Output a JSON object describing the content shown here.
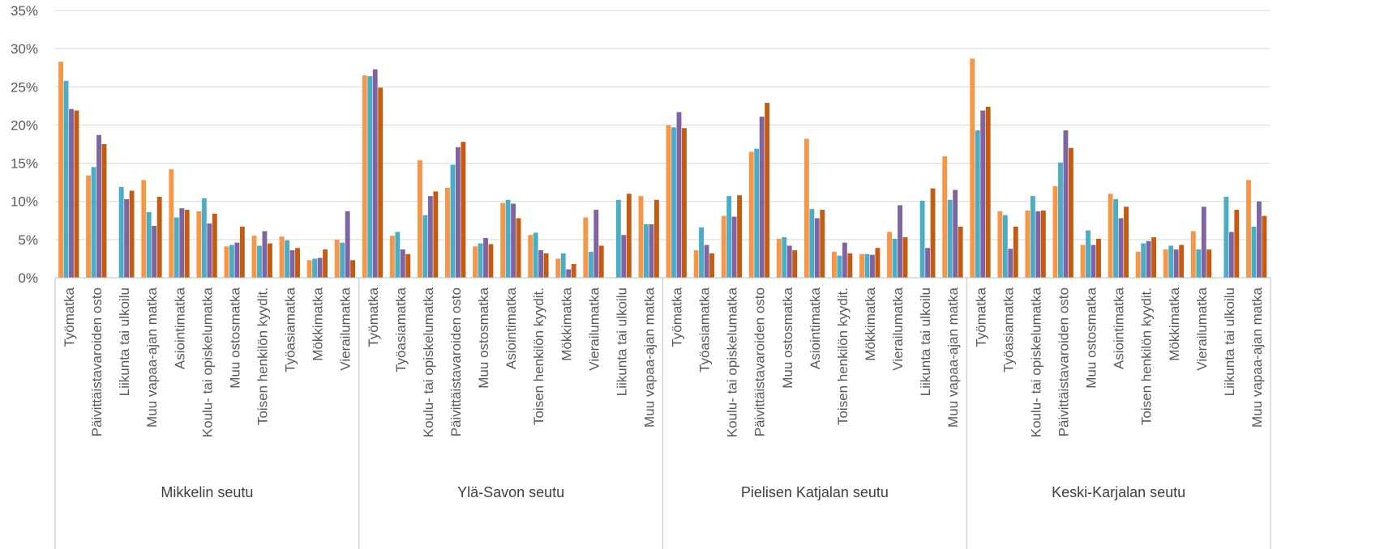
{
  "chart_data": {
    "type": "bar",
    "title": "",
    "xlabel": "",
    "ylabel": "",
    "ylim": [
      0,
      35
    ],
    "yticks": [
      "0%",
      "5%",
      "10%",
      "15%",
      "20%",
      "25%",
      "30%",
      "35%"
    ],
    "grid": true,
    "colors": [
      "#F79646",
      "#4BACC6",
      "#8064A2",
      "#C55A11"
    ],
    "groups": [
      {
        "name": "Mikkelin seutu",
        "categories": [
          {
            "label": "Työmatka",
            "values": [
              28.3,
              25.8,
              22.1,
              21.9
            ]
          },
          {
            "label": "Päivittäistavaroiden osto",
            "values": [
              13.4,
              14.5,
              18.7,
              17.5
            ]
          },
          {
            "label": "Liikunta tai ulkoilu",
            "values": [
              0,
              11.9,
              10.3,
              11.4
            ]
          },
          {
            "label": "Muu vapaa-ajan matka",
            "values": [
              12.8,
              8.6,
              6.8,
              10.6
            ]
          },
          {
            "label": "Asiointimatka",
            "values": [
              14.2,
              7.9,
              9.1,
              8.9
            ]
          },
          {
            "label": "Koulu- tai opiskelumatka",
            "values": [
              8.7,
              10.4,
              7.1,
              8.4
            ]
          },
          {
            "label": "Muu ostosmatka",
            "values": [
              4.1,
              4.3,
              4.6,
              6.7
            ]
          },
          {
            "label": "Toisen henkilön kyydit.",
            "values": [
              5.5,
              4.2,
              6.1,
              4.5
            ]
          },
          {
            "label": "Työasiamatka",
            "values": [
              5.4,
              4.9,
              3.6,
              3.9
            ]
          },
          {
            "label": "Mökkimatka",
            "values": [
              2.3,
              2.5,
              2.6,
              3.7
            ]
          },
          {
            "label": "Vierailumatka",
            "values": [
              5.0,
              4.6,
              8.7,
              2.3
            ]
          }
        ]
      },
      {
        "name": "Ylä-Savon seutu",
        "categories": [
          {
            "label": "Työmatka",
            "values": [
              26.5,
              26.4,
              27.3,
              24.9
            ]
          },
          {
            "label": "Työasiamatka",
            "values": [
              5.5,
              6.0,
              3.7,
              3.1
            ]
          },
          {
            "label": "Koulu- tai opiskelumatka",
            "values": [
              15.4,
              8.2,
              10.7,
              11.3
            ]
          },
          {
            "label": "Päivittäistavaroiden osto",
            "values": [
              11.8,
              14.8,
              17.1,
              17.8
            ]
          },
          {
            "label": "Muu ostosmatka",
            "values": [
              4.1,
              4.5,
              5.2,
              4.4
            ]
          },
          {
            "label": "Asiointimatka",
            "values": [
              9.8,
              10.2,
              9.7,
              7.8
            ]
          },
          {
            "label": "Toisen henkilön kyydit.",
            "values": [
              5.6,
              5.9,
              3.6,
              3.2
            ]
          },
          {
            "label": "Mökkimatka",
            "values": [
              2.5,
              3.2,
              1.1,
              1.8
            ]
          },
          {
            "label": "Vierailumatka",
            "values": [
              7.9,
              3.4,
              8.9,
              4.2
            ]
          },
          {
            "label": "Liikunta tai ulkoilu",
            "values": [
              0,
              10.2,
              5.6,
              11.0
            ]
          },
          {
            "label": "Muu vapaa-ajan matka",
            "values": [
              10.7,
              7.0,
              7.0,
              10.2
            ]
          }
        ]
      },
      {
        "name": "Pielisen Katjalan seutu",
        "categories": [
          {
            "label": "Työmatka",
            "values": [
              20.0,
              19.7,
              21.7,
              19.6
            ]
          },
          {
            "label": "Työasiamatka",
            "values": [
              3.6,
              6.6,
              4.3,
              3.2
            ]
          },
          {
            "label": "Koulu- tai opiskelumatka",
            "values": [
              8.1,
              10.7,
              8.0,
              10.8
            ]
          },
          {
            "label": "Päivittäistavaroiden osto",
            "values": [
              16.5,
              16.9,
              21.1,
              22.9
            ]
          },
          {
            "label": "Muu ostosmatka",
            "values": [
              5.1,
              5.3,
              4.2,
              3.6
            ]
          },
          {
            "label": "Asiointimatka",
            "values": [
              18.2,
              9.0,
              7.8,
              8.9
            ]
          },
          {
            "label": "Toisen henkilön kyydit.",
            "values": [
              3.4,
              2.9,
              4.6,
              3.2
            ]
          },
          {
            "label": "Mökkimatka",
            "values": [
              3.1,
              3.1,
              3.0,
              3.9
            ]
          },
          {
            "label": "Vierailumatka",
            "values": [
              6.0,
              5.1,
              9.5,
              5.3
            ]
          },
          {
            "label": "Liikunta tai ulkoilu",
            "values": [
              0,
              10.1,
              3.9,
              11.7
            ]
          },
          {
            "label": "Muu vapaa-ajan matka",
            "values": [
              15.9,
              10.2,
              11.5,
              6.7
            ]
          }
        ]
      },
      {
        "name": "Keski-Karjalan seutu",
        "categories": [
          {
            "label": "Työmatka",
            "values": [
              28.7,
              19.3,
              21.9,
              22.4
            ]
          },
          {
            "label": "Työasiamatka",
            "values": [
              8.7,
              8.2,
              3.8,
              6.7
            ]
          },
          {
            "label": "Koulu- tai opiskelumatka",
            "values": [
              8.8,
              10.7,
              8.7,
              8.8
            ]
          },
          {
            "label": "Päivittäistavaroiden osto",
            "values": [
              12.0,
              15.1,
              19.3,
              17.0
            ]
          },
          {
            "label": "Muu ostosmatka",
            "values": [
              4.3,
              6.2,
              4.3,
              5.1
            ]
          },
          {
            "label": "Asiointimatka",
            "values": [
              11.0,
              10.3,
              7.8,
              9.3
            ]
          },
          {
            "label": "Toisen henkilön kyydit.",
            "values": [
              3.4,
              4.5,
              4.8,
              5.3
            ]
          },
          {
            "label": "Mökkimatka",
            "values": [
              3.7,
              4.2,
              3.7,
              4.3
            ]
          },
          {
            "label": "Vierailumatka",
            "values": [
              6.1,
              3.7,
              9.3,
              3.7
            ]
          },
          {
            "label": "Liikunta tai ulkoilu",
            "values": [
              0,
              10.6,
              6.0,
              8.9
            ]
          },
          {
            "label": "Muu vapaa-ajan matka",
            "values": [
              12.8,
              6.7,
              10.0,
              8.1
            ]
          }
        ]
      }
    ]
  }
}
